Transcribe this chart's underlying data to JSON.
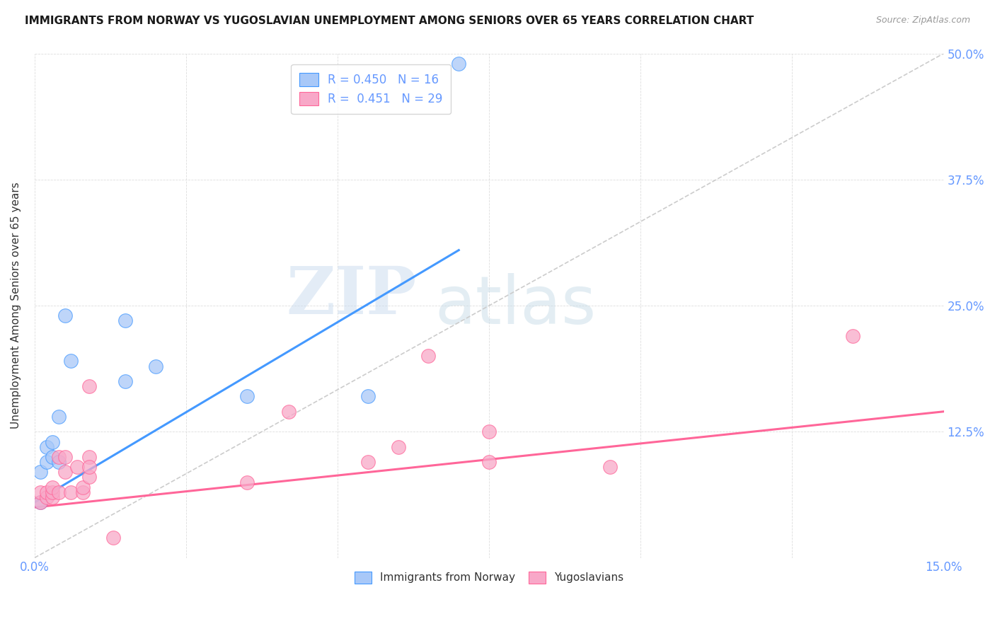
{
  "title": "IMMIGRANTS FROM NORWAY VS YUGOSLAVIAN UNEMPLOYMENT AMONG SENIORS OVER 65 YEARS CORRELATION CHART",
  "source": "Source: ZipAtlas.com",
  "ylabel": "Unemployment Among Seniors over 65 years",
  "xlim": [
    0.0,
    0.15
  ],
  "ylim": [
    0.0,
    0.5
  ],
  "xticks": [
    0.0,
    0.025,
    0.05,
    0.075,
    0.1,
    0.125,
    0.15
  ],
  "xticklabels": [
    "0.0%",
    "",
    "",
    "",
    "",
    "",
    "15.0%"
  ],
  "yticks": [
    0.0,
    0.125,
    0.25,
    0.375,
    0.5
  ],
  "right_yticklabels": [
    "",
    "12.5%",
    "25.0%",
    "37.5%",
    "50.0%"
  ],
  "norway_R": 0.45,
  "norway_N": 16,
  "yugo_R": 0.451,
  "yugo_N": 29,
  "norway_color": "#a8c8f8",
  "yugo_color": "#f8a8c8",
  "norway_line_color": "#4499ff",
  "yugo_line_color": "#ff6699",
  "diagonal_color": "#cccccc",
  "watermark_zip": "ZIP",
  "watermark_atlas": "atlas",
  "norway_x": [
    0.001,
    0.001,
    0.002,
    0.002,
    0.003,
    0.003,
    0.004,
    0.004,
    0.005,
    0.006,
    0.015,
    0.015,
    0.02,
    0.035,
    0.055,
    0.07
  ],
  "norway_y": [
    0.055,
    0.085,
    0.095,
    0.11,
    0.1,
    0.115,
    0.095,
    0.14,
    0.24,
    0.195,
    0.175,
    0.235,
    0.19,
    0.16,
    0.16,
    0.49
  ],
  "yugo_x": [
    0.001,
    0.001,
    0.002,
    0.002,
    0.003,
    0.003,
    0.003,
    0.004,
    0.004,
    0.005,
    0.005,
    0.006,
    0.007,
    0.008,
    0.008,
    0.009,
    0.009,
    0.009,
    0.009,
    0.013,
    0.035,
    0.042,
    0.055,
    0.06,
    0.065,
    0.075,
    0.075,
    0.095,
    0.135
  ],
  "yugo_y": [
    0.055,
    0.065,
    0.06,
    0.065,
    0.06,
    0.065,
    0.07,
    0.065,
    0.1,
    0.1,
    0.085,
    0.065,
    0.09,
    0.065,
    0.07,
    0.08,
    0.1,
    0.17,
    0.09,
    0.02,
    0.075,
    0.145,
    0.095,
    0.11,
    0.2,
    0.095,
    0.125,
    0.09,
    0.22
  ],
  "norway_line_x": [
    0.0,
    0.07
  ],
  "norway_line_y": [
    0.055,
    0.305
  ],
  "yugo_line_x": [
    0.0,
    0.15
  ],
  "yugo_line_y": [
    0.05,
    0.145
  ],
  "tick_color": "#6699ff",
  "label_color": "#333333",
  "legend_label_norway": "R = 0.450   N = 16",
  "legend_label_yugo": "R =  0.451   N = 29",
  "bottom_label_norway": "Immigrants from Norway",
  "bottom_label_yugo": "Yugoslavians"
}
